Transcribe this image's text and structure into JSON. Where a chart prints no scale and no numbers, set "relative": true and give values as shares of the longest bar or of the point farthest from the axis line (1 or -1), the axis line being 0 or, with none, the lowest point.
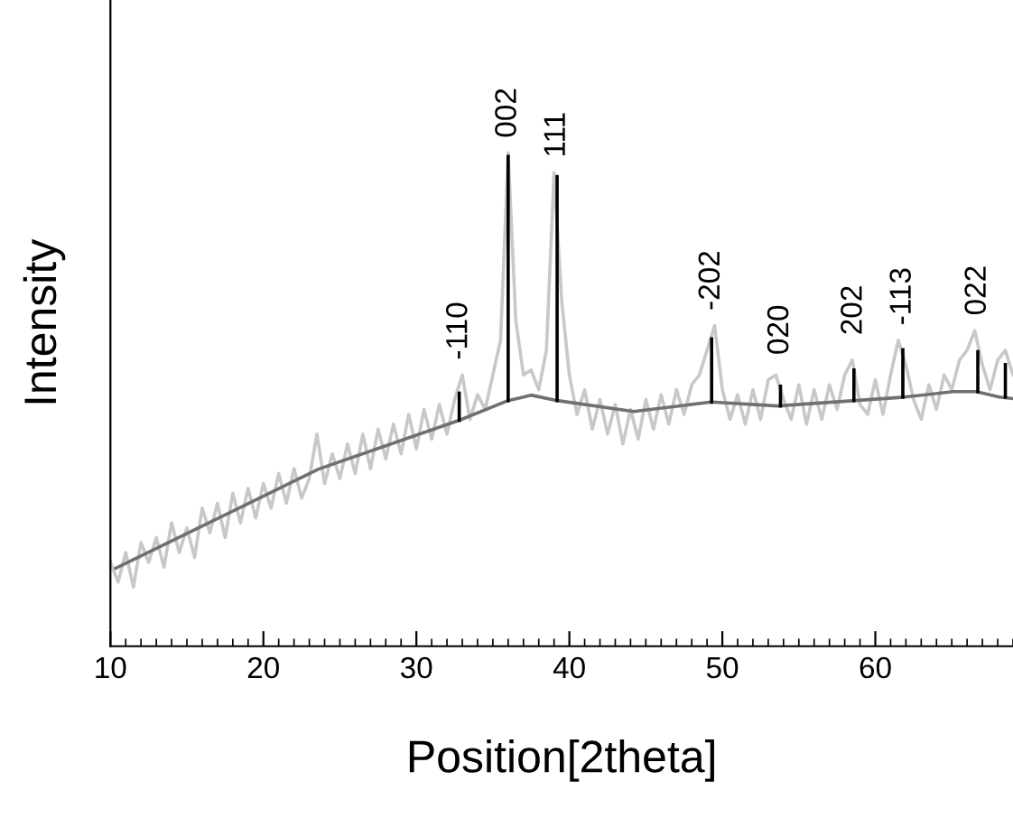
{
  "chart_data": {
    "type": "line",
    "relative": true,
    "xlabel": "Position[2theta]",
    "ylabel": "Intensity",
    "xlim": [
      10,
      69
    ],
    "xticks": [
      10,
      20,
      30,
      40,
      50,
      60
    ],
    "grid": false,
    "legend": false,
    "marker": "none",
    "line_style": "solid",
    "series": [
      {
        "color": "#c8c8c8",
        "x": [
          10.0,
          10.5,
          11.0,
          11.5,
          12.0,
          12.5,
          13.0,
          13.5,
          14.0,
          14.5,
          15.0,
          15.5,
          16.0,
          16.5,
          17.0,
          17.5,
          18.0,
          18.5,
          19.0,
          19.5,
          20.0,
          20.5,
          21.0,
          21.5,
          22.0,
          22.5,
          23.0,
          23.5,
          24.0,
          24.5,
          25.0,
          25.5,
          26.0,
          26.5,
          27.0,
          27.5,
          28.0,
          28.5,
          29.0,
          29.5,
          30.0,
          30.5,
          31.0,
          31.5,
          32.0,
          32.5,
          33.0,
          33.5,
          34.0,
          34.5,
          35.0,
          35.5,
          36.0,
          36.5,
          37.0,
          37.5,
          38.0,
          38.5,
          39.0,
          39.5,
          40.0,
          40.5,
          41.0,
          41.5,
          42.0,
          42.5,
          43.0,
          43.5,
          44.0,
          44.5,
          45.0,
          45.5,
          46.0,
          46.5,
          47.0,
          47.5,
          48.0,
          48.5,
          49.0,
          49.5,
          50.0,
          50.5,
          51.0,
          51.5,
          52.0,
          52.5,
          53.0,
          53.5,
          54.0,
          54.5,
          55.0,
          55.5,
          56.0,
          56.5,
          57.0,
          57.5,
          58.0,
          58.5,
          59.0,
          59.5,
          60.0,
          60.5,
          61.0,
          61.5,
          62.0,
          62.5,
          63.0,
          63.5,
          64.0,
          64.5,
          65.0,
          65.5,
          66.0,
          66.5,
          67.0,
          67.5,
          68.0,
          68.5,
          69.0
        ],
        "values": [
          0.17,
          0.13,
          0.19,
          0.12,
          0.21,
          0.17,
          0.22,
          0.16,
          0.25,
          0.19,
          0.24,
          0.18,
          0.28,
          0.23,
          0.29,
          0.22,
          0.31,
          0.25,
          0.32,
          0.26,
          0.33,
          0.28,
          0.35,
          0.29,
          0.36,
          0.3,
          0.34,
          0.43,
          0.33,
          0.39,
          0.34,
          0.41,
          0.35,
          0.43,
          0.36,
          0.44,
          0.38,
          0.45,
          0.39,
          0.47,
          0.4,
          0.48,
          0.42,
          0.49,
          0.43,
          0.5,
          0.55,
          0.46,
          0.51,
          0.48,
          0.55,
          0.62,
          1.0,
          0.66,
          0.55,
          0.56,
          0.52,
          0.6,
          0.96,
          0.7,
          0.55,
          0.47,
          0.52,
          0.44,
          0.5,
          0.43,
          0.49,
          0.41,
          0.48,
          0.42,
          0.5,
          0.44,
          0.51,
          0.45,
          0.52,
          0.47,
          0.53,
          0.55,
          0.6,
          0.65,
          0.52,
          0.46,
          0.51,
          0.45,
          0.52,
          0.46,
          0.54,
          0.55,
          0.5,
          0.46,
          0.53,
          0.45,
          0.52,
          0.46,
          0.53,
          0.48,
          0.55,
          0.58,
          0.49,
          0.47,
          0.54,
          0.47,
          0.55,
          0.62,
          0.57,
          0.5,
          0.46,
          0.53,
          0.48,
          0.55,
          0.52,
          0.58,
          0.6,
          0.64,
          0.57,
          0.52,
          0.58,
          0.6,
          0.55
        ]
      },
      {
        "color": "#707070",
        "x": [
          10.35,
          23.6,
          32.8,
          36.0,
          37.5,
          39.2,
          44.2,
          49.3,
          53.6,
          58.7,
          61.9,
          65.1,
          66.6,
          68.1,
          69.0
        ],
        "values": [
          0.158,
          0.359,
          0.458,
          0.498,
          0.509,
          0.498,
          0.476,
          0.495,
          0.487,
          0.498,
          0.505,
          0.516,
          0.516,
          0.505,
          0.502
        ]
      },
      {
        "color": "#000000",
        "x": [
          32.8,
          32.8
        ],
        "values": [
          0.458,
          0.513
        ]
      },
      {
        "color": "#000000",
        "x": [
          36.0,
          36.0
        ],
        "values": [
          0.498,
          0.993
        ]
      },
      {
        "color": "#000000",
        "x": [
          39.2,
          39.2
        ],
        "values": [
          0.498,
          0.952
        ]
      },
      {
        "color": "#000000",
        "x": [
          49.3,
          49.3
        ],
        "values": [
          0.495,
          0.623
        ]
      },
      {
        "color": "#000000",
        "x": [
          53.8,
          53.8
        ],
        "values": [
          0.487,
          0.527
        ]
      },
      {
        "color": "#000000",
        "x": [
          58.6,
          58.6
        ],
        "values": [
          0.498,
          0.56
        ]
      },
      {
        "color": "#000000",
        "x": [
          61.8,
          61.8
        ],
        "values": [
          0.505,
          0.601
        ]
      },
      {
        "color": "#000000",
        "x": [
          66.7,
          66.7
        ],
        "values": [
          0.516,
          0.597
        ]
      },
      {
        "color": "#000000",
        "x": [
          68.5,
          68.5
        ],
        "values": [
          0.505,
          0.571
        ]
      }
    ],
    "annotations": [
      {
        "text": "-110",
        "x": 32.8,
        "y": 0.55
      },
      {
        "text": "002",
        "x": 36.0,
        "y": 1.0
      },
      {
        "text": "111",
        "x": 39.2,
        "y": 0.96
      },
      {
        "text": "-202",
        "x": 49.3,
        "y": 0.65
      },
      {
        "text": "020",
        "x": 53.8,
        "y": 0.56
      },
      {
        "text": "202",
        "x": 58.6,
        "y": 0.6
      },
      {
        "text": "-113",
        "x": 61.8,
        "y": 0.62
      },
      {
        "text": "022",
        "x": 66.7,
        "y": 0.64
      }
    ]
  }
}
